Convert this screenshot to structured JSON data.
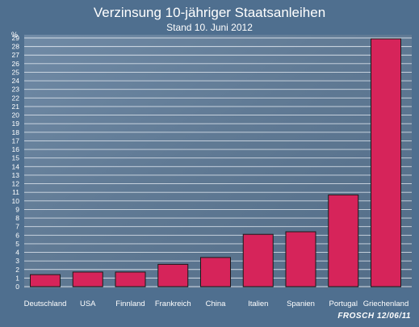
{
  "chart_data": {
    "type": "bar",
    "title": "Verzinsung 10-jähriger Staatsanleihen",
    "subtitle": "Stand 10. Juni 2012",
    "ylabel": "%",
    "ylim": [
      0,
      29
    ],
    "yticks": [
      0,
      1,
      2,
      3,
      4,
      5,
      6,
      7,
      8,
      9,
      10,
      11,
      12,
      13,
      14,
      15,
      16,
      17,
      18,
      19,
      20,
      21,
      22,
      23,
      24,
      25,
      26,
      27,
      28,
      29
    ],
    "grid": true,
    "categories": [
      "Deutschland",
      "USA",
      "Finnland",
      "Frankreich",
      "China",
      "Italien",
      "Spanien",
      "Portugal",
      "Griechenland"
    ],
    "values": [
      1.4,
      1.7,
      1.7,
      2.6,
      3.4,
      6.1,
      6.4,
      10.7,
      28.9
    ],
    "bar_color": "#d6245a"
  },
  "signature": "FROSCH 12/06/11",
  "colors": {
    "background": "#4f6f8f",
    "panel": "#5d7ea0",
    "grid": "#e8eef5",
    "text": "#ffffff"
  }
}
